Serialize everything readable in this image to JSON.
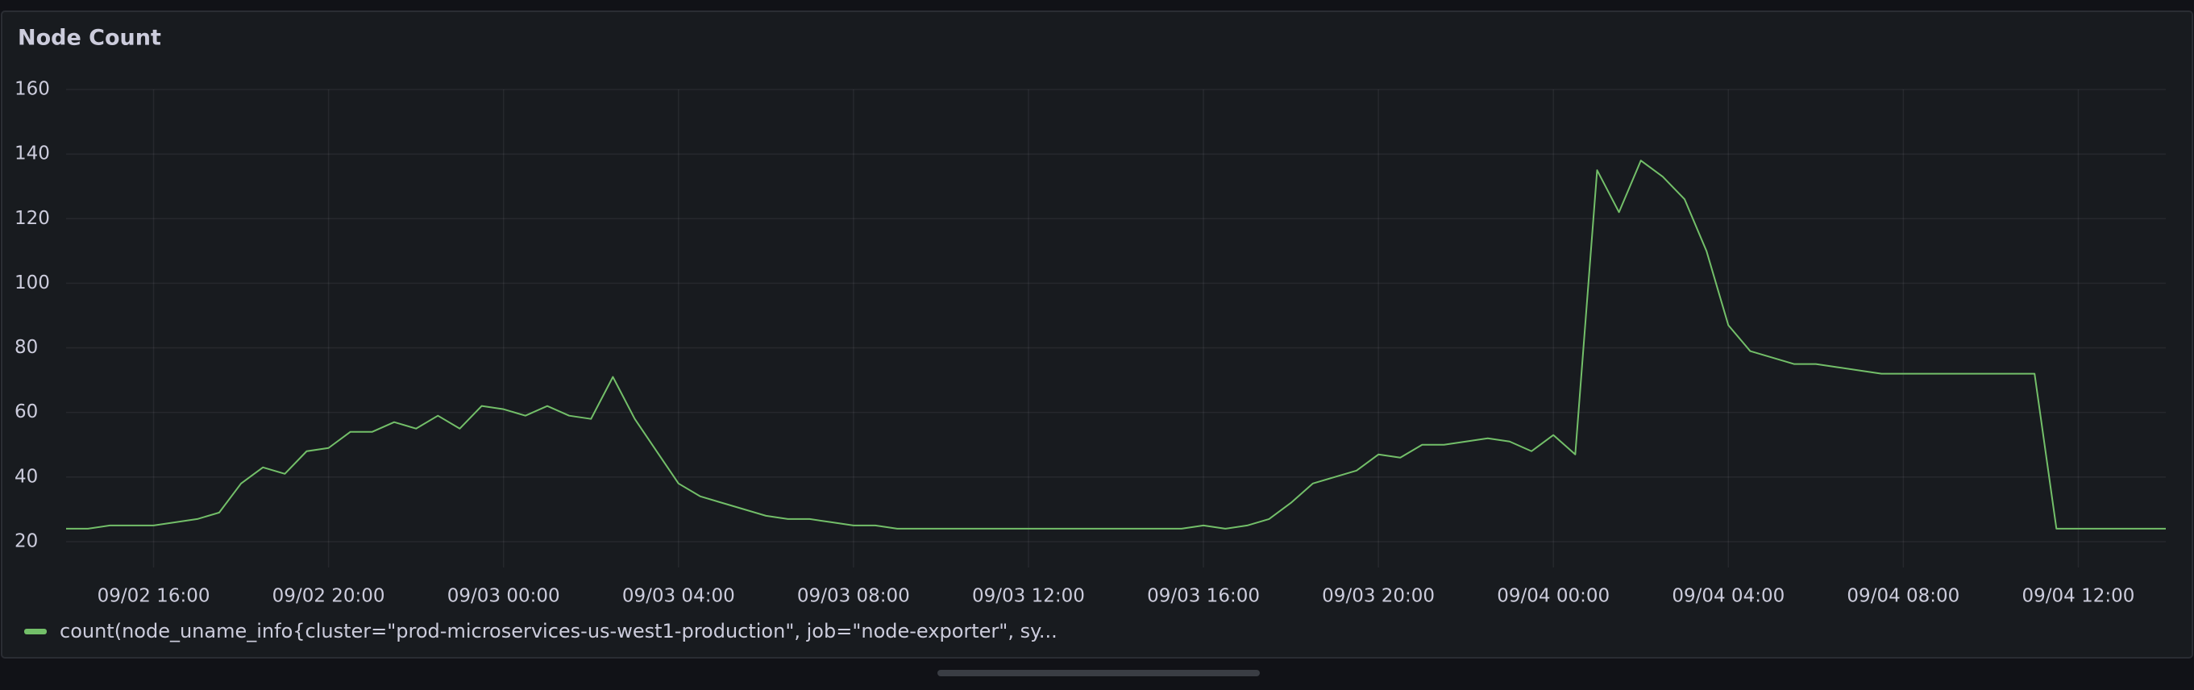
{
  "chart_data": {
    "type": "line",
    "title": "Node Count",
    "x": [
      "09/02 14:00",
      "09/02 14:30",
      "09/02 15:00",
      "09/02 15:30",
      "09/02 16:00",
      "09/02 16:30",
      "09/02 17:00",
      "09/02 17:30",
      "09/02 18:00",
      "09/02 18:30",
      "09/02 19:00",
      "09/02 19:30",
      "09/02 20:00",
      "09/02 20:30",
      "09/02 21:00",
      "09/02 21:30",
      "09/02 22:00",
      "09/02 22:30",
      "09/02 23:00",
      "09/02 23:30",
      "09/03 00:00",
      "09/03 00:30",
      "09/03 01:00",
      "09/03 01:30",
      "09/03 02:00",
      "09/03 02:30",
      "09/03 03:00",
      "09/03 03:30",
      "09/03 04:00",
      "09/03 04:30",
      "09/03 05:00",
      "09/03 05:30",
      "09/03 06:00",
      "09/03 06:30",
      "09/03 07:00",
      "09/03 07:30",
      "09/03 08:00",
      "09/03 08:30",
      "09/03 09:00",
      "09/03 09:30",
      "09/03 10:00",
      "09/03 10:30",
      "09/03 11:00",
      "09/03 11:30",
      "09/03 12:00",
      "09/03 12:30",
      "09/03 13:00",
      "09/03 13:30",
      "09/03 14:00",
      "09/03 14:30",
      "09/03 15:00",
      "09/03 15:30",
      "09/03 16:00",
      "09/03 16:30",
      "09/03 17:00",
      "09/03 17:30",
      "09/03 18:00",
      "09/03 18:30",
      "09/03 19:00",
      "09/03 19:30",
      "09/03 20:00",
      "09/03 20:30",
      "09/03 21:00",
      "09/03 21:30",
      "09/03 22:00",
      "09/03 22:30",
      "09/03 23:00",
      "09/03 23:30",
      "09/04 00:00",
      "09/04 00:30",
      "09/04 01:00",
      "09/04 01:30",
      "09/04 02:00",
      "09/04 02:30",
      "09/04 03:00",
      "09/04 03:30",
      "09/04 04:00",
      "09/04 04:30",
      "09/04 05:00",
      "09/04 05:30",
      "09/04 06:00",
      "09/04 06:30",
      "09/04 07:00",
      "09/04 07:30",
      "09/04 08:00",
      "09/04 08:30",
      "09/04 09:00",
      "09/04 09:30",
      "09/04 10:00",
      "09/04 10:30",
      "09/04 11:00",
      "09/04 11:30",
      "09/04 12:00",
      "09/04 12:30",
      "09/04 13:00",
      "09/04 13:30",
      "09/04 14:00"
    ],
    "series": [
      {
        "name": "count(node_uname_info{cluster=\"prod-microservices-us-west1-production\", job=\"node-exporter\", sy...",
        "color": "#73bf69",
        "values": [
          24,
          24,
          25,
          25,
          25,
          26,
          27,
          29,
          38,
          43,
          41,
          48,
          49,
          54,
          54,
          57,
          55,
          59,
          55,
          62,
          61,
          59,
          62,
          59,
          58,
          71,
          58,
          48,
          38,
          34,
          32,
          30,
          28,
          27,
          27,
          26,
          25,
          25,
          24,
          24,
          24,
          24,
          24,
          24,
          24,
          24,
          24,
          24,
          24,
          24,
          24,
          24,
          25,
          24,
          25,
          27,
          32,
          38,
          40,
          42,
          47,
          46,
          50,
          50,
          51,
          52,
          51,
          48,
          53,
          47,
          135,
          122,
          138,
          133,
          126,
          110,
          87,
          79,
          77,
          75,
          75,
          74,
          73,
          72,
          72,
          72,
          72,
          72,
          72,
          72,
          72,
          24,
          24,
          24,
          24,
          24,
          24
        ]
      }
    ],
    "xlim": [
      "09/02 14:00",
      "09/04 14:00"
    ],
    "xticks": [
      "09/02 16:00",
      "09/02 20:00",
      "09/03 00:00",
      "09/03 04:00",
      "09/03 08:00",
      "09/03 12:00",
      "09/03 16:00",
      "09/03 20:00",
      "09/04 00:00",
      "09/04 04:00",
      "09/04 08:00",
      "09/04 12:00"
    ],
    "ylim": [
      12,
      160
    ],
    "yticks": [
      20,
      40,
      60,
      80,
      100,
      120,
      140,
      160
    ],
    "grid": true
  }
}
